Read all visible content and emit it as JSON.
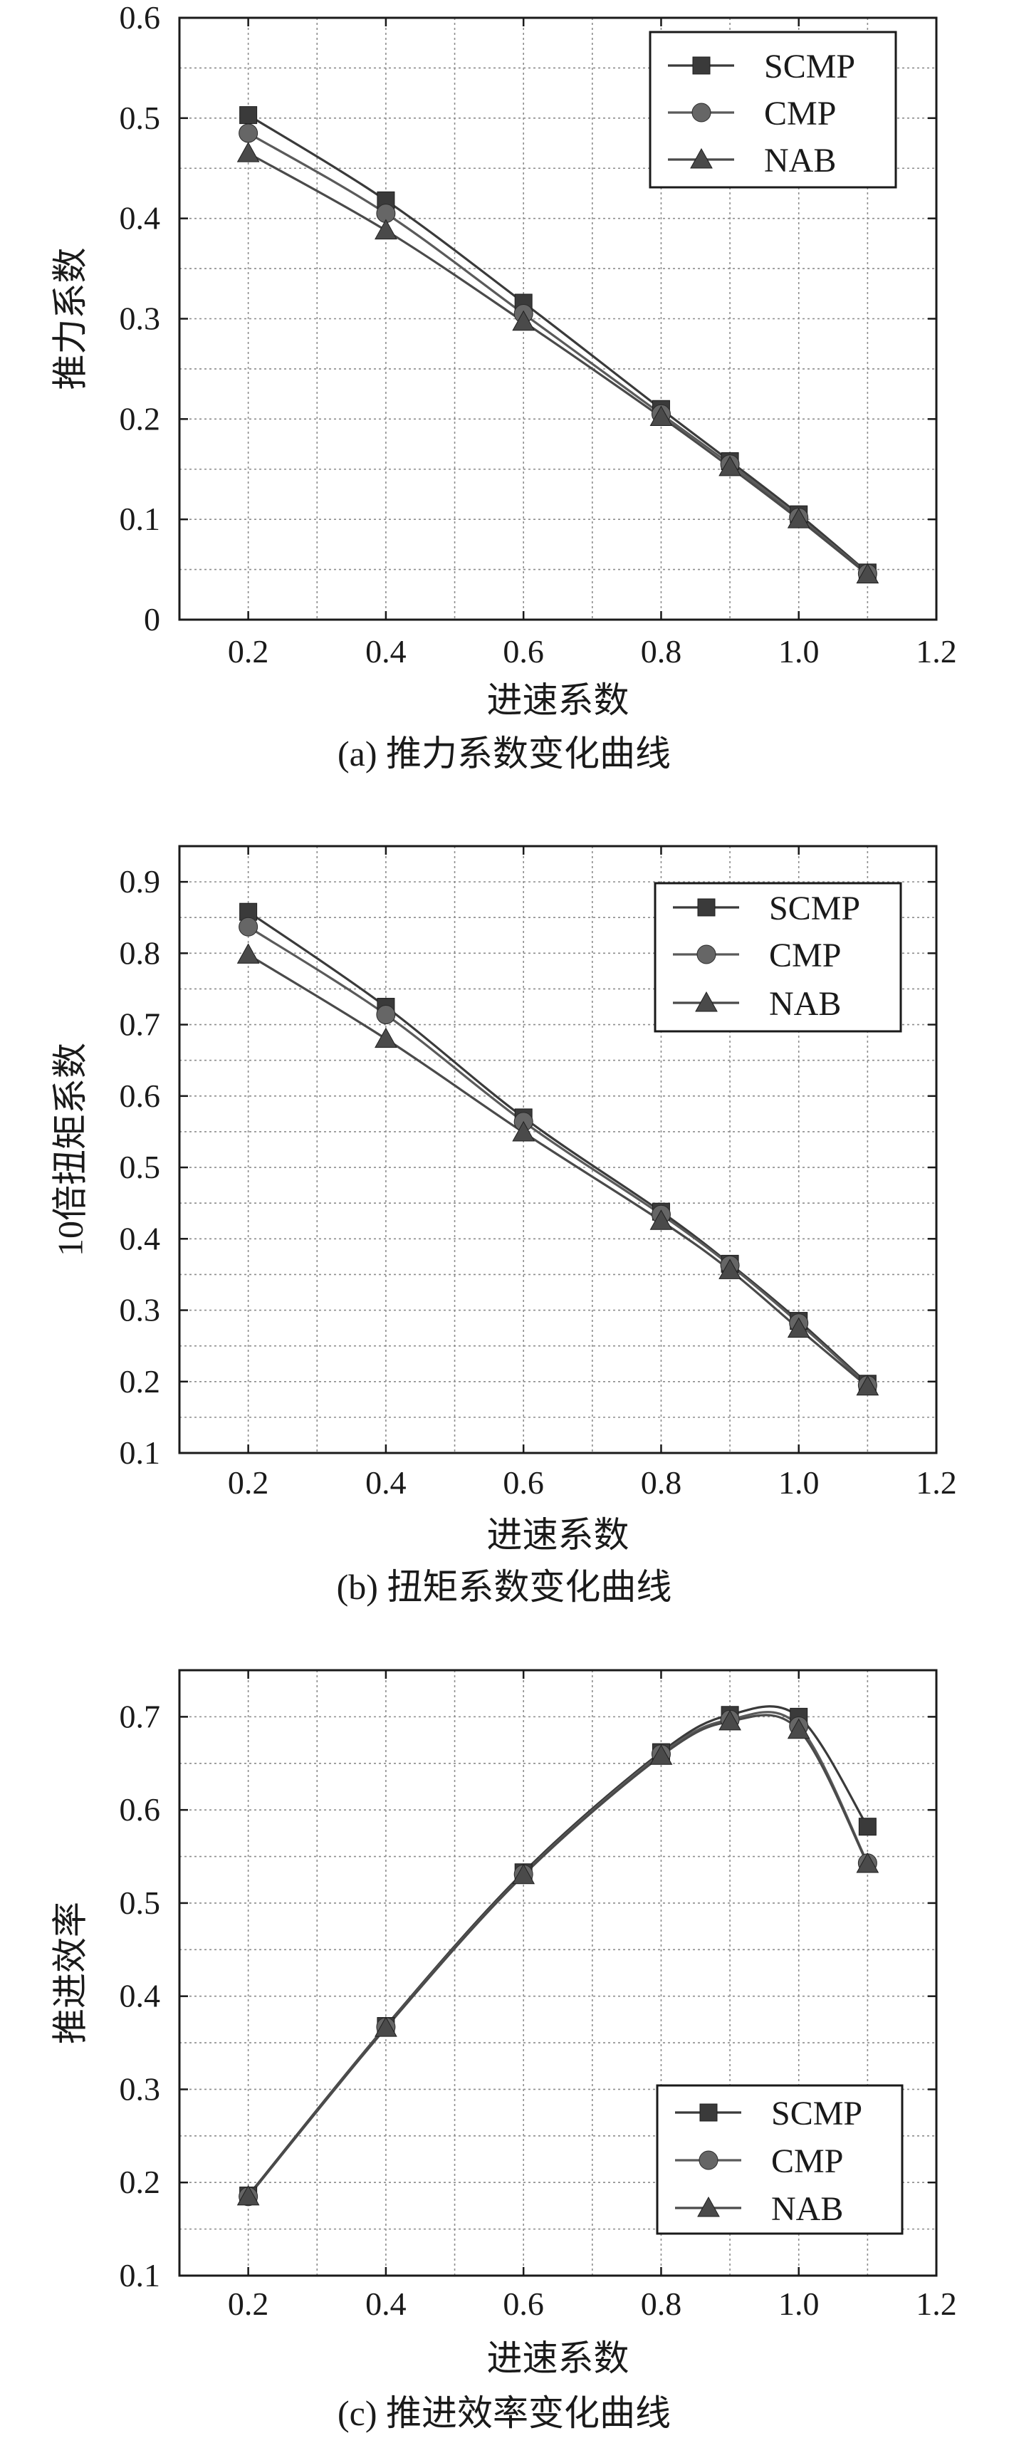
{
  "chart_data": [
    {
      "type": "line",
      "caption": "(a) 推力系数变化曲线",
      "xlabel": "进速系数",
      "ylabel": "推力系数",
      "xlim": [
        0.1,
        1.2
      ],
      "ylim": [
        0,
        0.6
      ],
      "xticks": [
        0.2,
        0.4,
        0.6,
        0.8,
        1.0,
        1.2
      ],
      "xtick_labels": [
        "0.2",
        "0.4",
        "0.6",
        "0.8",
        "1.0",
        "1.2"
      ],
      "yticks": [
        0,
        0.1,
        0.2,
        0.3,
        0.4,
        0.5,
        0.6
      ],
      "ytick_labels": [
        "0",
        "0.1",
        "0.2",
        "0.3",
        "0.4",
        "0.5",
        "0.6"
      ],
      "grid": true,
      "legend_position": "top-right",
      "x": [
        0.2,
        0.4,
        0.6,
        0.8,
        0.9,
        1.0,
        1.1
      ],
      "series": [
        {
          "name": "SCMP",
          "marker": "square",
          "values": [
            0.503,
            0.418,
            0.316,
            0.21,
            0.158,
            0.105,
            0.047
          ]
        },
        {
          "name": "CMP",
          "marker": "circle",
          "values": [
            0.485,
            0.405,
            0.305,
            0.205,
            0.155,
            0.102,
            0.046
          ]
        },
        {
          "name": "NAB",
          "marker": "triangle",
          "values": [
            0.465,
            0.388,
            0.297,
            0.202,
            0.152,
            0.1,
            0.045
          ]
        }
      ]
    },
    {
      "type": "line",
      "caption": "(b) 扭矩系数变化曲线",
      "xlabel": "进速系数",
      "ylabel": "10倍扭矩系数",
      "xlim": [
        0.1,
        1.2
      ],
      "ylim": [
        0.1,
        0.95
      ],
      "xticks": [
        0.2,
        0.4,
        0.6,
        0.8,
        1.0,
        1.2
      ],
      "xtick_labels": [
        "0.2",
        "0.4",
        "0.6",
        "0.8",
        "1.0",
        "1.2"
      ],
      "yticks": [
        0.1,
        0.2,
        0.3,
        0.4,
        0.5,
        0.6,
        0.7,
        0.8,
        0.9
      ],
      "ytick_labels": [
        "0.1",
        "0.2",
        "0.3",
        "0.4",
        "0.5",
        "0.6",
        "0.7",
        "0.8",
        "0.9"
      ],
      "grid": true,
      "legend_position": "top-right",
      "x": [
        0.2,
        0.4,
        0.6,
        0.8,
        0.9,
        1.0,
        1.1
      ],
      "series": [
        {
          "name": "SCMP",
          "marker": "square",
          "values": [
            0.858,
            0.725,
            0.57,
            0.438,
            0.365,
            0.285,
            0.197
          ]
        },
        {
          "name": "CMP",
          "marker": "circle",
          "values": [
            0.837,
            0.714,
            0.564,
            0.434,
            0.363,
            0.282,
            0.195
          ]
        },
        {
          "name": "NAB",
          "marker": "triangle",
          "values": [
            0.798,
            0.68,
            0.549,
            0.425,
            0.356,
            0.274,
            0.193
          ]
        }
      ]
    },
    {
      "type": "line",
      "caption": "(c) 推进效率变化曲线",
      "xlabel": "进速系数",
      "ylabel": "推进效率",
      "xlim": [
        0.1,
        1.2
      ],
      "ylim": [
        0.1,
        0.75
      ],
      "xticks": [
        0.2,
        0.4,
        0.6,
        0.8,
        1.0,
        1.2
      ],
      "xtick_labels": [
        "0.2",
        "0.4",
        "0.6",
        "0.8",
        "1.0",
        "1.2"
      ],
      "yticks": [
        0.1,
        0.2,
        0.3,
        0.4,
        0.5,
        0.6,
        0.7
      ],
      "ytick_labels": [
        "0.1",
        "0.2",
        "0.3",
        "0.4",
        "0.5",
        "0.6",
        "0.7"
      ],
      "grid": true,
      "legend_position": "bottom-right",
      "x": [
        0.2,
        0.4,
        0.6,
        0.8,
        0.9,
        1.0,
        1.1
      ],
      "series": [
        {
          "name": "SCMP",
          "marker": "square",
          "values": [
            0.186,
            0.368,
            0.533,
            0.662,
            0.702,
            0.7,
            0.582
          ]
        },
        {
          "name": "CMP",
          "marker": "circle",
          "values": [
            0.185,
            0.367,
            0.531,
            0.66,
            0.697,
            0.69,
            0.543
          ]
        },
        {
          "name": "NAB",
          "marker": "triangle",
          "values": [
            0.185,
            0.366,
            0.53,
            0.658,
            0.695,
            0.686,
            0.542
          ]
        }
      ]
    }
  ]
}
